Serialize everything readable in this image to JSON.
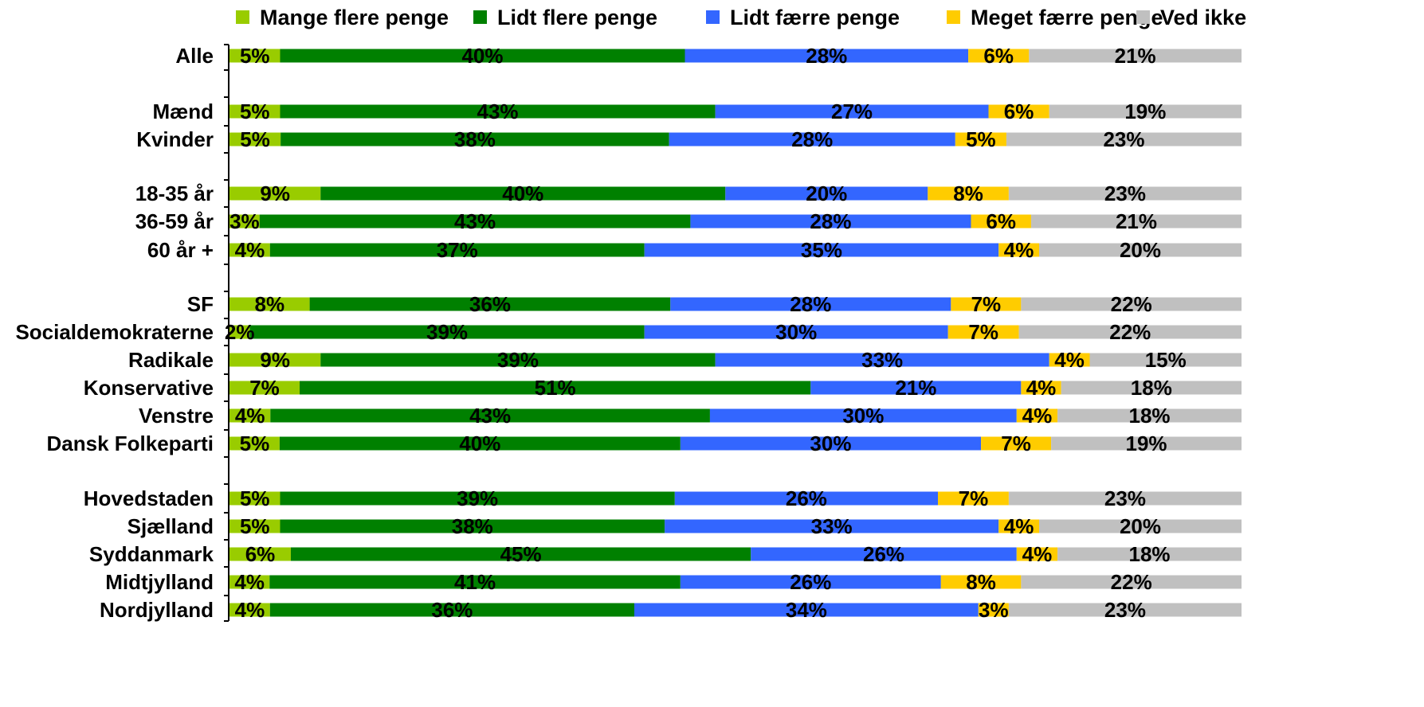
{
  "chart_data": {
    "type": "bar",
    "stacked": true,
    "orientation": "horizontal",
    "legend_position": "top",
    "series": [
      {
        "name": "Mange flere penge",
        "color": "#99CC00"
      },
      {
        "name": "Lidt flere penge",
        "color": "#008000"
      },
      {
        "name": "Lidt færre penge",
        "color": "#3366FF"
      },
      {
        "name": "Meget færre penge",
        "color": "#FFCC00"
      },
      {
        "name": "Ved ikke",
        "color": "#C0C0C0"
      }
    ],
    "rows": [
      {
        "label": "Alle",
        "values": [
          5,
          40,
          28,
          6,
          21
        ]
      },
      {
        "label": "Mænd",
        "values": [
          5,
          43,
          27,
          6,
          19
        ]
      },
      {
        "label": "Kvinder",
        "values": [
          5,
          38,
          28,
          5,
          23
        ]
      },
      {
        "label": "18-35 år",
        "values": [
          9,
          40,
          20,
          8,
          23
        ]
      },
      {
        "label": "36-59 år",
        "values": [
          3,
          43,
          28,
          6,
          21
        ]
      },
      {
        "label": "60 år +",
        "values": [
          4,
          37,
          35,
          4,
          20
        ]
      },
      {
        "label": "SF",
        "values": [
          8,
          36,
          28,
          7,
          22
        ]
      },
      {
        "label": "Socialdemokraterne",
        "values": [
          2,
          39,
          30,
          7,
          22
        ]
      },
      {
        "label": "Radikale",
        "values": [
          9,
          39,
          33,
          4,
          15
        ]
      },
      {
        "label": "Konservative",
        "values": [
          7,
          51,
          21,
          4,
          18
        ]
      },
      {
        "label": "Venstre",
        "values": [
          4,
          43,
          30,
          4,
          18
        ]
      },
      {
        "label": "Dansk Folkeparti",
        "values": [
          5,
          40,
          30,
          7,
          19
        ]
      },
      {
        "label": "Hovedstaden",
        "values": [
          5,
          39,
          26,
          7,
          23
        ]
      },
      {
        "label": "Sjælland",
        "values": [
          5,
          38,
          33,
          4,
          20
        ]
      },
      {
        "label": "Syddanmark",
        "values": [
          6,
          45,
          26,
          4,
          18
        ]
      },
      {
        "label": "Midtjylland",
        "values": [
          4,
          41,
          26,
          8,
          22
        ]
      },
      {
        "label": "Nordjylland",
        "values": [
          4,
          36,
          34,
          3,
          23
        ]
      }
    ],
    "value_suffix": "%"
  }
}
